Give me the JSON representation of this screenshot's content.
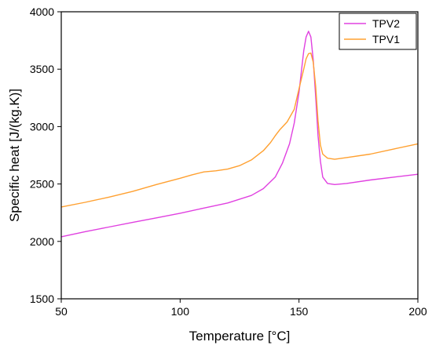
{
  "chart_data": {
    "type": "line",
    "title": "",
    "xlabel": "Temperature [°C]",
    "ylabel": "Specific heat [J/(kg.K)]",
    "xlim": [
      50,
      200
    ],
    "ylim": [
      1500,
      4000
    ],
    "xticks": [
      50,
      100,
      150,
      200
    ],
    "yticks": [
      1500,
      2000,
      2500,
      3000,
      3500,
      4000
    ],
    "grid": false,
    "legend": "top-right",
    "series": [
      {
        "name": "TPV2",
        "color": "#e040e0",
        "x": [
          50,
          60,
          70,
          80,
          90,
          100,
          110,
          120,
          130,
          135,
          140,
          143,
          146,
          148,
          150,
          151,
          152,
          153,
          154,
          155,
          156,
          157,
          158,
          159,
          160,
          162,
          165,
          170,
          180,
          190,
          200
        ],
        "y": [
          2040,
          2085,
          2125,
          2165,
          2205,
          2245,
          2290,
          2335,
          2400,
          2460,
          2560,
          2680,
          2850,
          3030,
          3300,
          3480,
          3660,
          3780,
          3830,
          3780,
          3580,
          3260,
          2920,
          2700,
          2560,
          2505,
          2495,
          2505,
          2535,
          2560,
          2585
        ]
      },
      {
        "name": "TPV1",
        "color": "#ffa030",
        "x": [
          50,
          60,
          70,
          80,
          90,
          100,
          105,
          110,
          115,
          120,
          125,
          130,
          135,
          138,
          140,
          142,
          145,
          148,
          150,
          152,
          153,
          154,
          155,
          156,
          157,
          158,
          159,
          160,
          162,
          165,
          170,
          180,
          190,
          200
        ],
        "y": [
          2300,
          2340,
          2385,
          2435,
          2495,
          2550,
          2580,
          2605,
          2615,
          2630,
          2660,
          2710,
          2790,
          2860,
          2920,
          2975,
          3040,
          3150,
          3330,
          3500,
          3590,
          3635,
          3640,
          3560,
          3350,
          3050,
          2840,
          2760,
          2725,
          2715,
          2730,
          2760,
          2805,
          2850
        ]
      }
    ]
  }
}
